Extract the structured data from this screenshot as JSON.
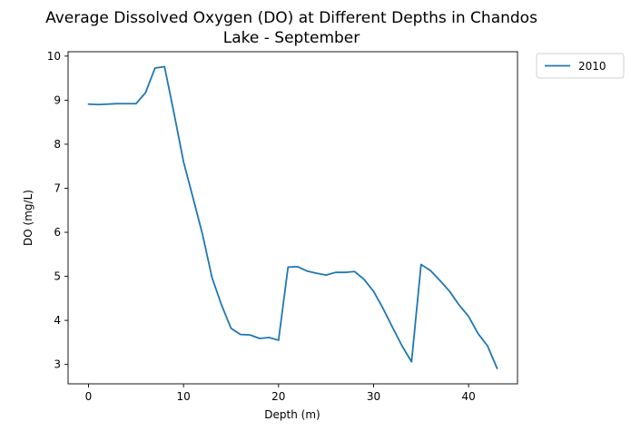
{
  "chart_data": {
    "type": "line",
    "title_line1": "Average Dissolved Oxygen (DO) at Different Depths in Chandos",
    "title_line2": "Lake - September",
    "xlabel": "Depth (m)",
    "ylabel": "DO (mg/L)",
    "xlim": [
      -2.15,
      45.15
    ],
    "ylim": [
      2.56,
      10.1
    ],
    "xticks": [
      0,
      10,
      20,
      30,
      40
    ],
    "yticks": [
      3,
      4,
      5,
      6,
      7,
      8,
      9,
      10
    ],
    "grid": false,
    "legend_placement": "outside-top-right",
    "series": [
      {
        "name": "2010",
        "color": "#1f77b4",
        "x": [
          0,
          1,
          2,
          3,
          4,
          5,
          6,
          7,
          8,
          9,
          10,
          11,
          12,
          13,
          14,
          15,
          16,
          17,
          18,
          19,
          20,
          21,
          22,
          23,
          24,
          25,
          26,
          27,
          28,
          29,
          30,
          31,
          32,
          33,
          34,
          35,
          36,
          37,
          38,
          39,
          40,
          41,
          42,
          43
        ],
        "y": [
          8.91,
          8.9,
          8.91,
          8.92,
          8.92,
          8.92,
          9.17,
          9.73,
          9.76,
          8.7,
          7.6,
          6.78,
          5.95,
          4.97,
          4.35,
          3.82,
          3.68,
          3.67,
          3.59,
          3.61,
          3.55,
          5.21,
          5.22,
          5.12,
          5.07,
          5.03,
          5.09,
          5.09,
          5.11,
          4.93,
          4.66,
          4.27,
          3.84,
          3.42,
          3.06,
          5.27,
          5.13,
          4.9,
          4.66,
          4.35,
          4.09,
          3.7,
          3.42,
          2.91
        ]
      }
    ]
  }
}
